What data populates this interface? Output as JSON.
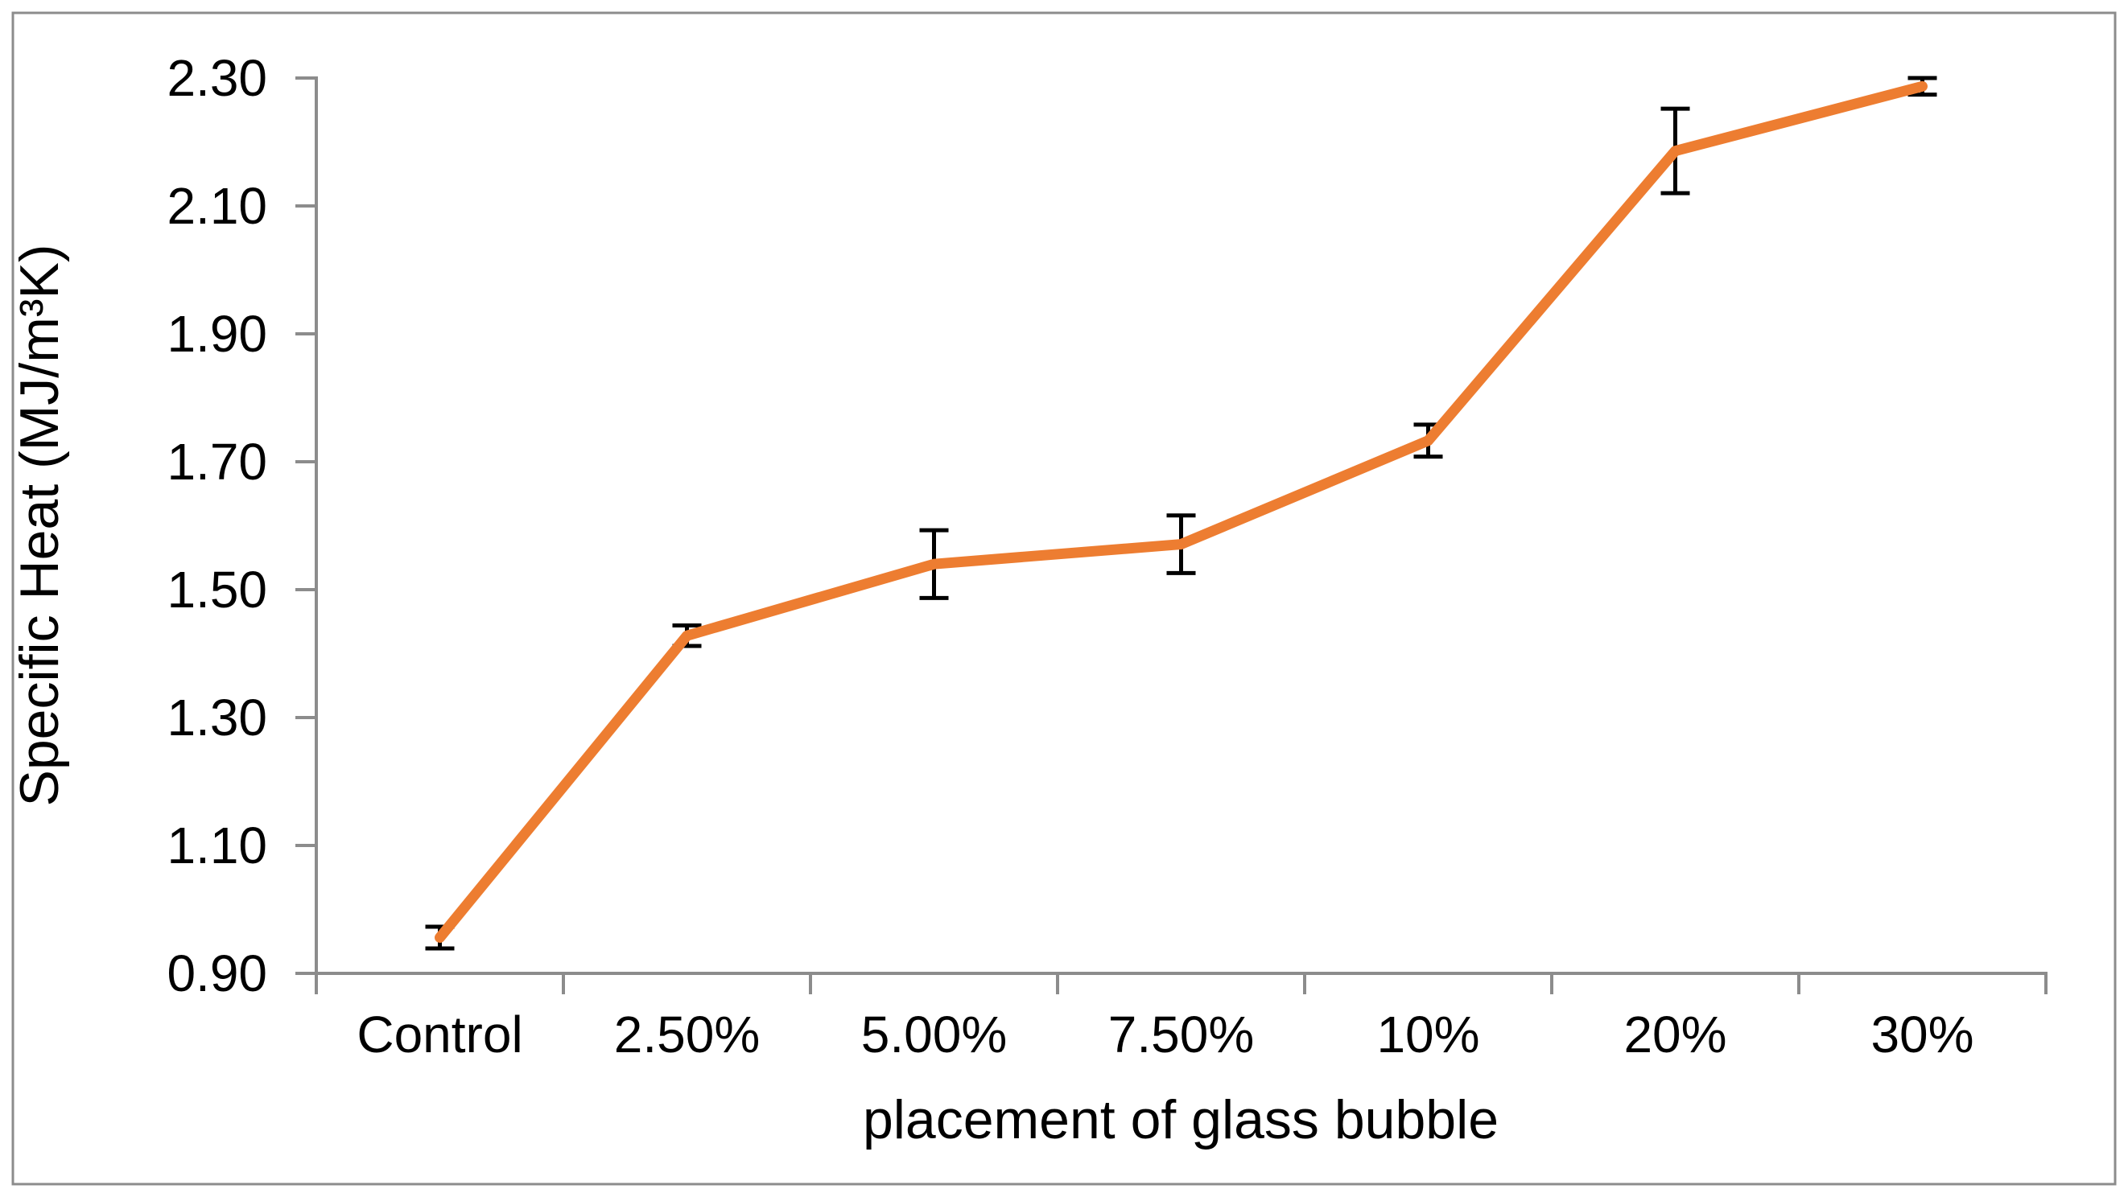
{
  "figure": {
    "background": "#FFFFFF",
    "border_color": "#8C8C8C",
    "border_width": 3
  },
  "chart_data": {
    "type": "line",
    "title": "",
    "xlabel": "placement of glass bubble",
    "ylabel": "Specific Heat (MJ/m³K)",
    "categories": [
      "Control",
      "2.50%",
      "5.00%",
      "7.50%",
      "10%",
      "20%",
      "30%"
    ],
    "series": [
      {
        "name": "Specific Heat",
        "values": [
          0.956,
          1.428,
          1.54,
          1.571,
          1.733,
          2.186,
          2.287
        ],
        "error_bars": [
          0.017,
          0.016,
          0.053,
          0.045,
          0.025,
          0.066,
          0.013
        ],
        "color": "#ED7D31",
        "line_width": 13,
        "marker": "none"
      }
    ],
    "y_axis": {
      "min": 0.9,
      "max": 2.3,
      "tick_step": 0.2,
      "tick_labels": [
        "0.90",
        "1.10",
        "1.30",
        "1.50",
        "1.70",
        "1.90",
        "2.10",
        "2.30"
      ]
    },
    "x_axis": {
      "type": "category",
      "tick_marks": "between-categories"
    },
    "legend": "none",
    "grid": "off",
    "axis_color": "#8C8C8C",
    "error_bar_color": "#000000",
    "error_bar_cap_halfwidth": 18
  }
}
